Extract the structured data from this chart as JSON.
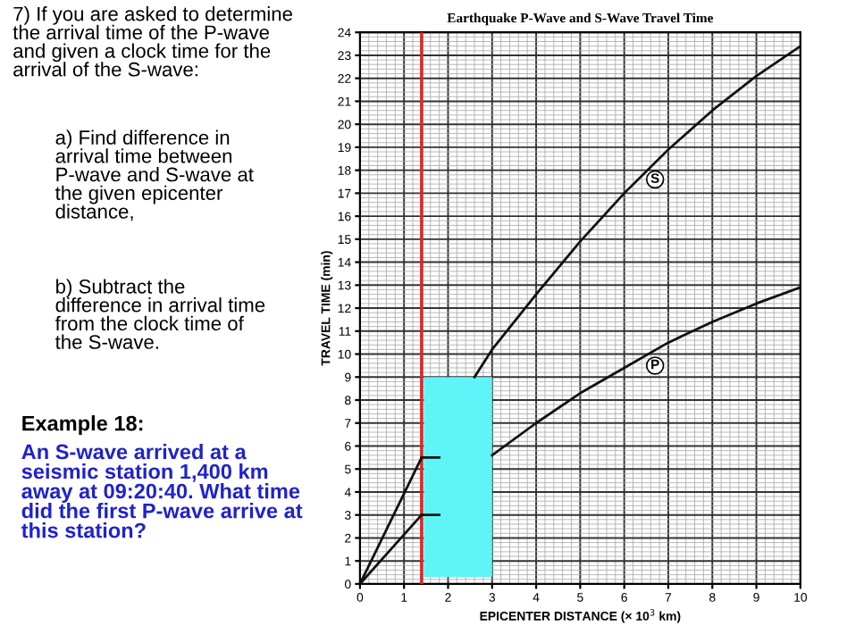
{
  "chart_data": {
    "type": "line",
    "title": "Earthquake P-Wave and S-Wave Travel Time",
    "xlabel": "EPICENTER DISTANCE (× 10$^{3}$ km)",
    "ylabel": "TRAVEL TIME (min)",
    "xlim": [
      0,
      10
    ],
    "ylim": [
      0,
      24
    ],
    "xticks": [
      0,
      1,
      2,
      3,
      4,
      5,
      6,
      7,
      8,
      9,
      10
    ],
    "yticks": [
      0,
      1,
      2,
      3,
      4,
      5,
      6,
      7,
      8,
      9,
      10,
      11,
      12,
      13,
      14,
      15,
      16,
      17,
      18,
      19,
      20,
      21,
      22,
      23,
      24
    ],
    "grid": true,
    "marker": "none",
    "line_style": "solid",
    "series": [
      {
        "color": "#111111",
        "x": [
          0,
          1.4,
          2.0,
          2.6,
          3,
          4,
          5,
          6,
          7,
          8,
          9,
          10
        ],
        "values": [
          0,
          5.5,
          null,
          9.0,
          10.2,
          12.6,
          14.9,
          17.0,
          18.9,
          20.6,
          22.1,
          23.4
        ]
      },
      {
        "color": "#111111",
        "x": [
          0,
          1.4,
          2.0,
          3,
          4,
          5,
          6,
          7,
          8,
          9,
          10
        ],
        "values": [
          0,
          3.0,
          null,
          5.6,
          7.0,
          8.3,
          9.4,
          10.5,
          11.4,
          12.2,
          12.9
        ]
      },
      {
        "color": "#111111",
        "x": [
          1.4,
          1.8
        ],
        "values": [
          5.5,
          5.5
        ]
      },
      {
        "color": "#111111",
        "x": [
          1.4,
          1.8
        ],
        "values": [
          3.0,
          3.0
        ]
      }
    ],
    "ref_lines": [
      {
        "axis": "x",
        "value": 1.4,
        "color": "#d42a2a",
        "line_style": "solid"
      }
    ],
    "annotations": [
      {
        "text": "S",
        "x": 6.7,
        "y": 17.6
      },
      {
        "text": "P",
        "x": 6.7,
        "y": 9.5
      },
      "7) If you are asked to determine the arrival time of the P-wave and given a clock time for the arrival of the S-wave:",
      "a) Find difference in arrival time between P-wave and S-wave at the given epicenter distance,",
      "b) Subtract the difference in arrival time from the clock time of the S-wave.",
      "Example 18:",
      "An S-wave arrived at a seismic station 1,400 km away at 09:20:40. What time did the first P-wave arrive at this station?"
    ]
  }
}
